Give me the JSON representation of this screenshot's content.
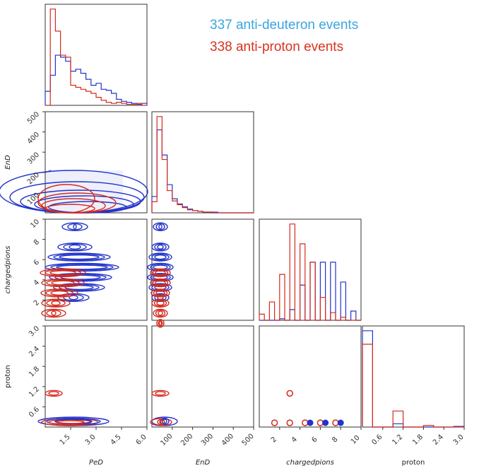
{
  "legend": {
    "entries": [
      {
        "text": "337 anti-deuteron events",
        "color": "#3aa6dd"
      },
      {
        "text": "338 anti-proton events",
        "color": "#d9321f"
      }
    ]
  },
  "colors": {
    "deuteron": "#2233cc",
    "proton": "#d42a1c"
  },
  "chart_data": {
    "type": "corner",
    "variables": [
      "PeD",
      "EnD",
      "chargedpions",
      "proton"
    ],
    "axis_labels": [
      "PeD",
      "EnD",
      "chargedpions",
      "proton"
    ],
    "ranges": [
      [
        0,
        6.0
      ],
      [
        0,
        500
      ],
      [
        0,
        10
      ],
      [
        0,
        3.0
      ]
    ],
    "ticks": {
      "PeD": [
        "1.5",
        "3.0",
        "4.5",
        "6.0"
      ],
      "EnD": [
        "100",
        "200",
        "300",
        "400",
        "500"
      ],
      "chargedpions": [
        "2",
        "4",
        "6",
        "8",
        "10"
      ],
      "proton": [
        "0.6",
        "1.2",
        "1.8",
        "2.4",
        "3.0"
      ],
      "EnD_y": [
        "100",
        "200",
        "300",
        "400",
        "500"
      ],
      "chargedpions_y": [
        "2",
        "4",
        "6",
        "8",
        "10"
      ],
      "proton_y": [
        "0.6",
        "1.2",
        "1.8",
        "2.4",
        "3.0"
      ]
    },
    "tick_values": {
      "PeD": [
        1.5,
        3.0,
        4.5,
        6.0
      ],
      "EnD": [
        100,
        200,
        300,
        400,
        500
      ],
      "chargedpions": [
        2,
        4,
        6,
        8,
        10
      ],
      "proton": [
        0.6,
        1.2,
        1.8,
        2.4,
        3.0
      ]
    },
    "hist_1d": {
      "PeD": {
        "edges": [
          0,
          0.3,
          0.6,
          0.9,
          1.2,
          1.5,
          1.8,
          2.1,
          2.4,
          2.7,
          3.0,
          3.3,
          3.6,
          3.9,
          4.2,
          4.5,
          4.8,
          5.1,
          5.4,
          5.7,
          6.0
        ],
        "deuteron": [
          14,
          30,
          50,
          48,
          44,
          34,
          36,
          32,
          26,
          20,
          22,
          16,
          15,
          12,
          6,
          4,
          3,
          2,
          1,
          2
        ],
        "proton": [
          0,
          96,
          74,
          50,
          48,
          20,
          18,
          16,
          14,
          12,
          8,
          5,
          3,
          2,
          3,
          2,
          1,
          1,
          2,
          0
        ]
      },
      "EnD": {
        "edges": [
          0,
          25,
          50,
          75,
          100,
          125,
          150,
          175,
          200,
          225,
          250,
          275,
          300,
          325,
          350,
          375,
          400,
          425,
          450,
          475,
          500
        ],
        "deuteron": [
          22,
          112,
          78,
          38,
          19,
          12,
          8,
          5,
          3,
          2,
          1,
          1,
          0,
          0,
          0,
          0,
          0,
          0,
          0,
          0
        ],
        "proton": [
          15,
          130,
          72,
          30,
          16,
          11,
          7,
          4,
          3,
          2,
          1,
          1,
          1,
          0,
          0,
          0,
          0,
          0,
          0,
          0
        ]
      },
      "chargedpions": {
        "edges": [
          0,
          0.5,
          1,
          1.5,
          2,
          2.5,
          3,
          3.5,
          4,
          4.5,
          5,
          5.5,
          6,
          6.5,
          7,
          7.5,
          8,
          8.5,
          9,
          9.5,
          10
        ],
        "deuteron": [
          0,
          0,
          0,
          0,
          1,
          0,
          7,
          0,
          23,
          0,
          38,
          0,
          38,
          0,
          38,
          0,
          25,
          0,
          6,
          0
        ],
        "proton": [
          4,
          0,
          12,
          0,
          30,
          0,
          63,
          0,
          50,
          0,
          38,
          0,
          15,
          0,
          5,
          0,
          2,
          0,
          0,
          0
        ]
      },
      "proton": {
        "edges": [
          0,
          0.3,
          0.6,
          0.9,
          1.2,
          1.5,
          1.8,
          2.1,
          2.4,
          2.7,
          3.0
        ],
        "deuteron": [
          300,
          0,
          0,
          10,
          0,
          0,
          0,
          0,
          0,
          2
        ],
        "proton": [
          258,
          0,
          0,
          50,
          0,
          0,
          5,
          0,
          0,
          0
        ]
      }
    },
    "contours_2d": [
      {
        "row": "EnD",
        "col": "PeD",
        "deuteron": [
          [
            0.6,
            75
          ],
          [
            1.8,
            40
          ],
          [
            3.2,
            20
          ],
          [
            4.5,
            12
          ]
        ],
        "proton": [
          [
            0.4,
            60
          ],
          [
            1.4,
            30
          ],
          [
            2.4,
            15
          ]
        ]
      },
      {
        "row": "chargedpions",
        "col": "PeD",
        "deuteron_levels": [
          10,
          9,
          8,
          7,
          6,
          5,
          4,
          3
        ],
        "proton_levels": [
          5,
          4,
          3,
          2,
          1
        ]
      },
      {
        "row": "chargedpions",
        "col": "EnD",
        "deuteron_levels": [
          10,
          9,
          8,
          7,
          6,
          5,
          4,
          3
        ],
        "proton_levels": [
          5,
          4,
          3,
          2,
          1,
          0
        ]
      },
      {
        "row": "proton",
        "col": "PeD",
        "deuteron_levels": [
          0
        ],
        "proton_levels": [
          0,
          1
        ]
      },
      {
        "row": "proton",
        "col": "EnD",
        "deuteron_levels": [
          0
        ],
        "proton_levels": [
          0,
          1
        ]
      },
      {
        "row": "proton",
        "col": "chargedpions",
        "deuteron_levels": [
          0
        ],
        "proton_levels": [
          0,
          1
        ]
      }
    ]
  }
}
